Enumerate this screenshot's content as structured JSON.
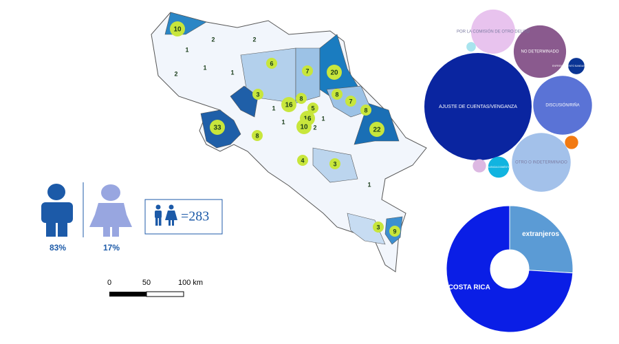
{
  "map": {
    "labels": [
      10,
      2,
      2,
      1,
      1,
      2,
      1,
      6,
      7,
      20,
      3,
      8,
      7,
      8,
      16,
      5,
      16,
      8,
      1,
      1,
      10,
      22,
      33,
      8,
      1,
      2,
      4,
      3,
      1,
      9,
      3
    ]
  },
  "gender": {
    "male": "83%",
    "female": "17%",
    "total": "=283"
  },
  "scale": {
    "ticks": [
      "0",
      "50",
      "100 km"
    ]
  },
  "chart_data": [
    {
      "type": "bubble",
      "categories": [
        "AJUSTE DE CUENTAS/VENGANZA",
        "NO DETERMINADO",
        "DISCUSIÓN/RIÑA",
        "OTRO O INDETERMINADO",
        "POR LA COMISIÓN DE OTRO DELITO",
        "ENFRENTAMIENTO BANDAS CRIMINALES",
        null,
        "VIOLENCIA DOMÉSTICA",
        null,
        null
      ],
      "values": [
        130,
        31,
        39,
        39,
        22,
        3,
        2,
        5,
        2,
        1
      ],
      "colors": [
        "#0a25a0",
        "#8a5a8e",
        "#5a73d6",
        "#a3c1ea",
        "#e8c3ee",
        "#0a3594",
        "#f27a12",
        "#11b4e0",
        "#dcb8e2",
        "#a8e4ee"
      ]
    },
    {
      "type": "pie",
      "donut": true,
      "categories": [
        "extranjeros",
        "COSTA RICA"
      ],
      "values": [
        26,
        74
      ],
      "colors": [
        "#5b9bd5",
        "#0a1ee6"
      ]
    }
  ]
}
